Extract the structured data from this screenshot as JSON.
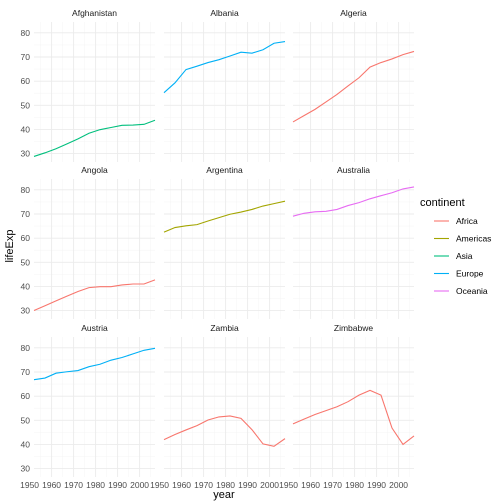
{
  "chart_data": {
    "type": "line",
    "facet_by": "country",
    "xlabel": "year",
    "ylabel": "lifeExp",
    "xlim": [
      1952,
      2007
    ],
    "ylim": [
      26.5,
      84.5
    ],
    "x_ticks": [
      1950,
      1960,
      1970,
      1980,
      1990,
      2000
    ],
    "x_tick_labels": [
      "1950",
      "1960",
      "1970",
      "1980",
      "1990",
      "2000"
    ],
    "y_ticks": [
      30,
      40,
      50,
      60,
      70,
      80
    ],
    "y_tick_labels": [
      "30",
      "40",
      "50",
      "60",
      "70",
      "80"
    ],
    "grid": true,
    "legend": {
      "title": "continent",
      "position": "right",
      "entries": [
        {
          "label": "Africa",
          "color": "#F8766D"
        },
        {
          "label": "Americas",
          "color": "#A3A500"
        },
        {
          "label": "Asia",
          "color": "#00BF7D"
        },
        {
          "label": "Europe",
          "color": "#00B0F6"
        },
        {
          "label": "Oceania",
          "color": "#E76BF3"
        }
      ]
    },
    "x": [
      1952,
      1957,
      1962,
      1967,
      1972,
      1977,
      1982,
      1987,
      1992,
      1997,
      2002,
      2007
    ],
    "series": [
      {
        "name": "Afghanistan",
        "continent": "Asia",
        "values": [
          28.8,
          30.3,
          32.0,
          34.0,
          36.1,
          38.4,
          39.9,
          40.8,
          41.7,
          41.8,
          42.1,
          43.8
        ]
      },
      {
        "name": "Albania",
        "continent": "Europe",
        "values": [
          55.2,
          59.3,
          64.8,
          66.2,
          67.7,
          68.9,
          70.4,
          72.0,
          71.6,
          73.0,
          75.7,
          76.4
        ]
      },
      {
        "name": "Algeria",
        "continent": "Africa",
        "values": [
          43.1,
          45.7,
          48.3,
          51.4,
          54.5,
          58.0,
          61.4,
          65.8,
          67.7,
          69.2,
          71.0,
          72.3
        ]
      },
      {
        "name": "Angola",
        "continent": "Africa",
        "values": [
          30.0,
          32.0,
          34.0,
          36.0,
          37.9,
          39.5,
          39.9,
          39.9,
          40.6,
          41.0,
          41.0,
          42.7
        ]
      },
      {
        "name": "Argentina",
        "continent": "Americas",
        "values": [
          62.5,
          64.4,
          65.1,
          65.6,
          67.1,
          68.5,
          69.9,
          70.8,
          71.9,
          73.3,
          74.3,
          75.3
        ]
      },
      {
        "name": "Australia",
        "continent": "Oceania",
        "values": [
          69.1,
          70.3,
          70.9,
          71.1,
          71.9,
          73.5,
          74.7,
          76.3,
          77.6,
          78.8,
          80.4,
          81.2
        ]
      },
      {
        "name": "Austria",
        "continent": "Europe",
        "values": [
          66.8,
          67.5,
          69.5,
          70.1,
          70.6,
          72.2,
          73.2,
          74.9,
          76.0,
          77.5,
          79.0,
          79.8
        ]
      },
      {
        "name": "Zambia",
        "continent": "Africa",
        "values": [
          42.0,
          44.1,
          46.0,
          47.8,
          50.1,
          51.4,
          51.8,
          50.8,
          46.1,
          40.2,
          39.2,
          42.4
        ]
      },
      {
        "name": "Zimbabwe",
        "continent": "Africa",
        "values": [
          48.5,
          50.5,
          52.4,
          54.0,
          55.6,
          57.7,
          60.4,
          62.4,
          60.4,
          46.8,
          40.0,
          43.5
        ]
      }
    ]
  }
}
